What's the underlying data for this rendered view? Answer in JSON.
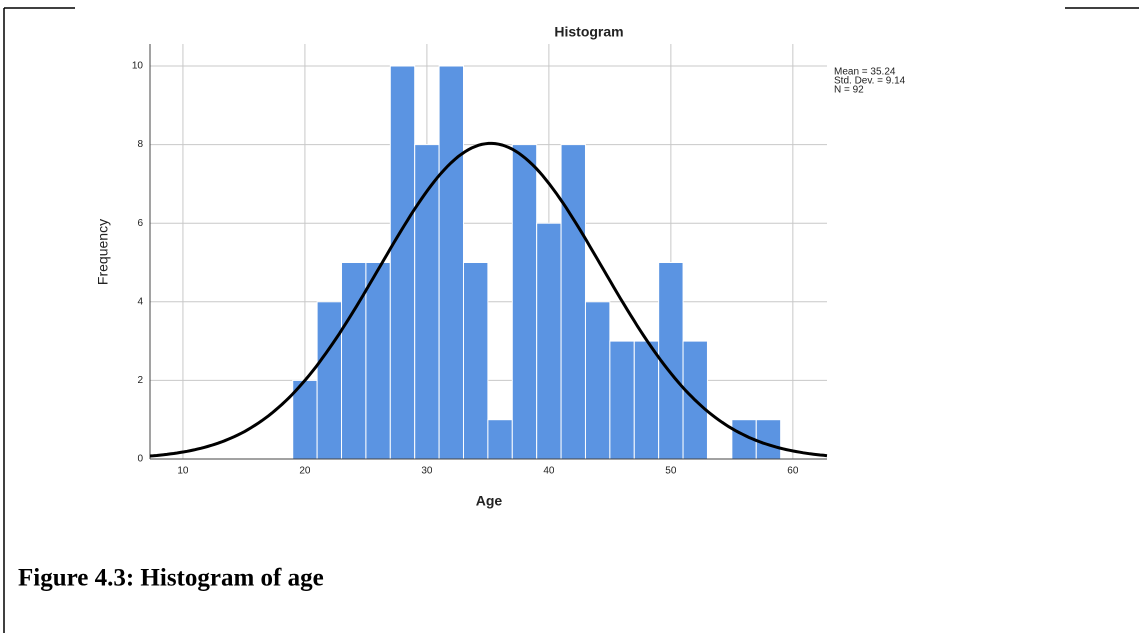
{
  "chart_data": {
    "type": "histogram",
    "title": "Histogram",
    "x_label": "Age",
    "y_label": "Frequency",
    "bins": [
      19,
      21,
      23,
      25,
      27,
      29,
      31,
      33,
      35,
      37,
      39,
      41,
      43,
      45,
      47,
      49,
      51,
      53,
      55,
      57,
      59
    ],
    "values": [
      2,
      4,
      5,
      5,
      10,
      8,
      10,
      5,
      1,
      8,
      6,
      8,
      4,
      3,
      3,
      5,
      3,
      0,
      1,
      1
    ],
    "color": "#5b94e2",
    "xlim": [
      7.3,
      62.8
    ],
    "xticks": [
      10,
      20,
      30,
      40,
      50,
      60
    ],
    "ylim": [
      0,
      10.56
    ],
    "yticks": [
      0,
      2,
      4,
      6,
      8,
      10
    ],
    "grid": true,
    "normal_curve": {
      "mean": 35.24,
      "std": 9.14,
      "n": 92,
      "color": "#000000"
    },
    "annotations": [
      "Mean = 35.24",
      "Std. Dev. = 9.14",
      "N = 92"
    ]
  },
  "caption": "Figure 4.3: Histogram of age"
}
